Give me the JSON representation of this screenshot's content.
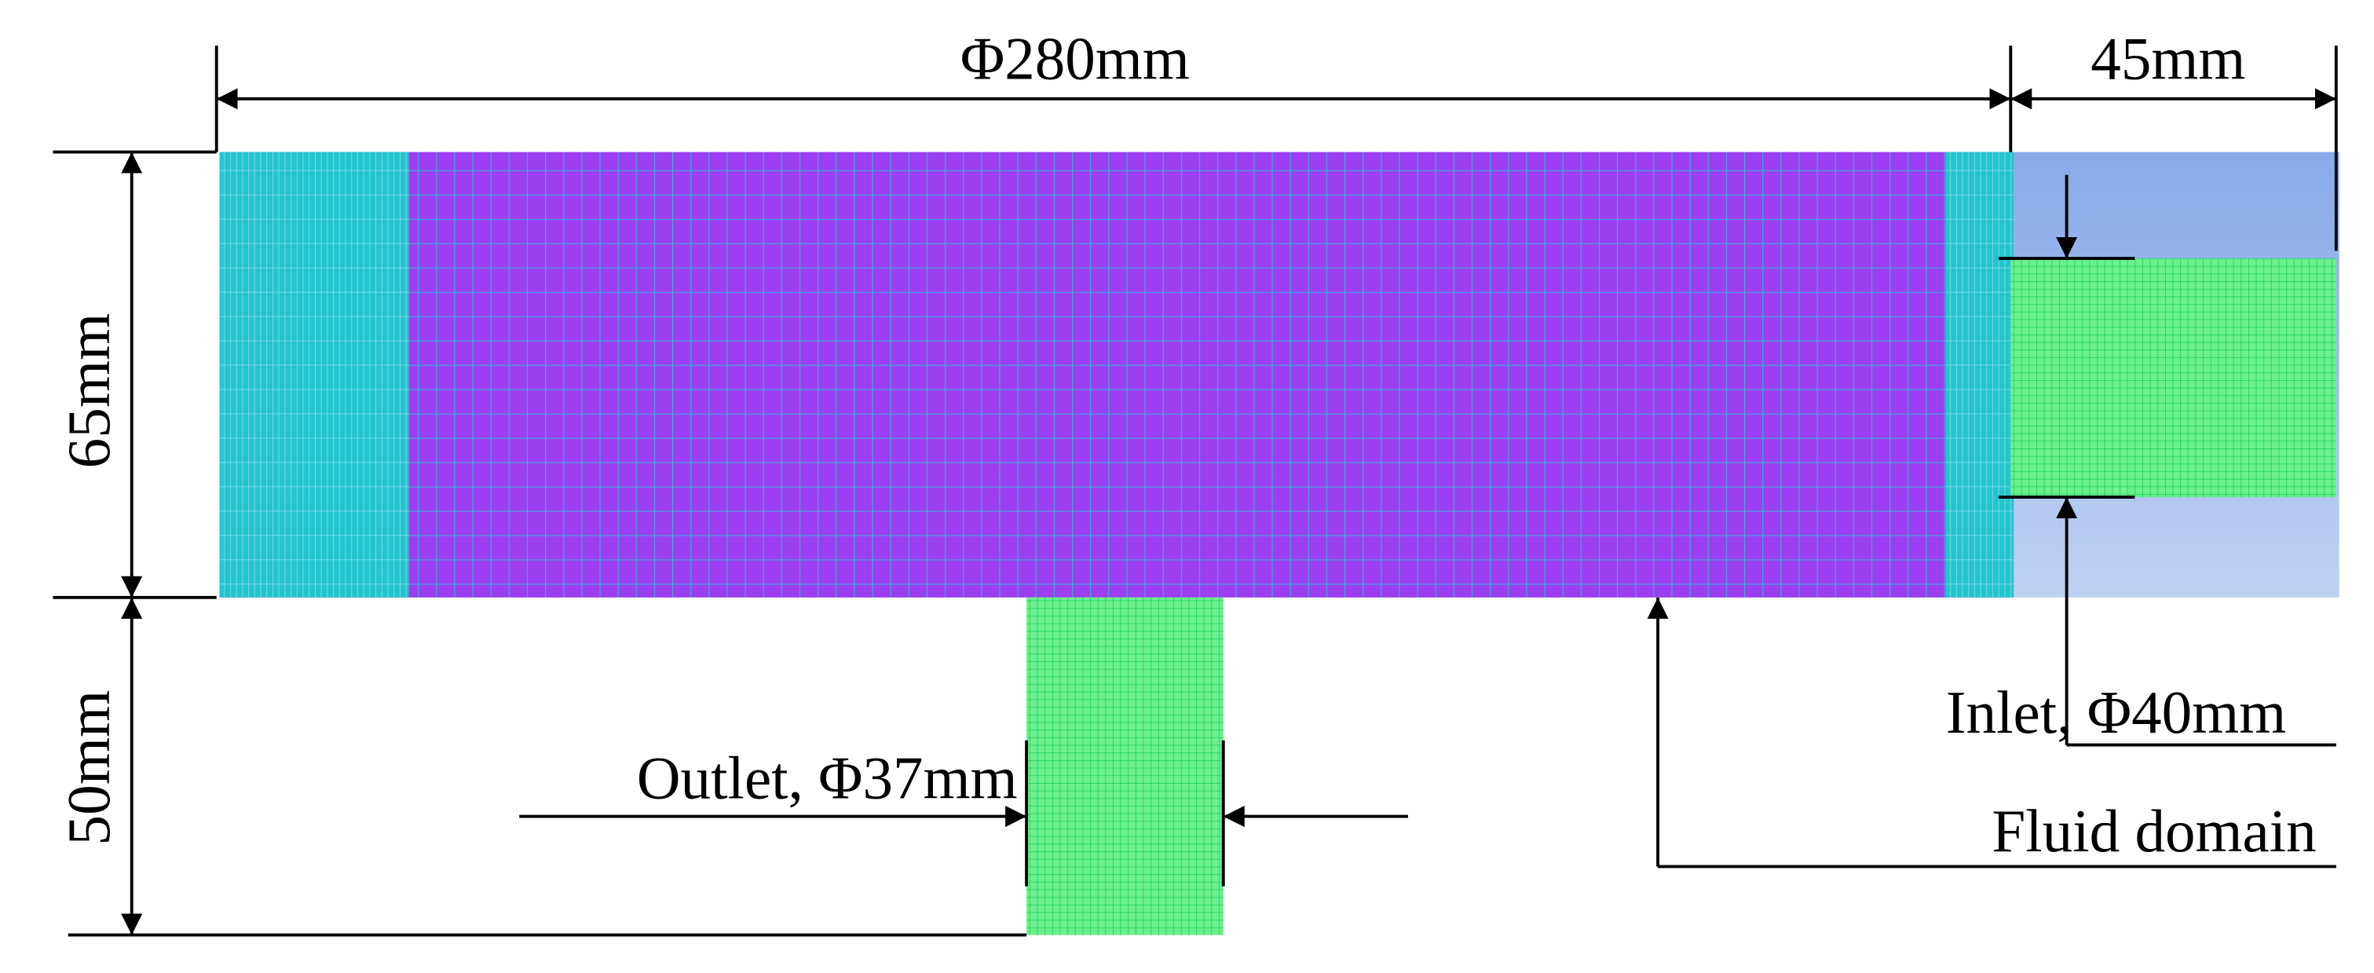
{
  "dimensions": {
    "outer_diameter": "Φ280mm",
    "inlet_length": "45mm",
    "domain_height": "65mm",
    "outlet_height": "50mm"
  },
  "annotations": {
    "inlet": "Inlet, Φ40mm",
    "outlet": "Outlet, Φ37mm",
    "fluid_domain": "Fluid domain"
  }
}
